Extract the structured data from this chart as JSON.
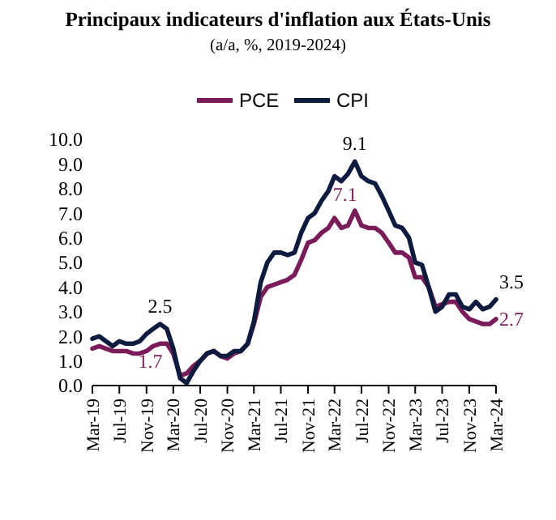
{
  "chart_data": {
    "type": "line",
    "title": "Principaux indicateurs d'inflation aux États-Unis",
    "subtitle": "(a/a, %, 2019-2024)",
    "x": [
      "2019-03",
      "2019-04",
      "2019-05",
      "2019-06",
      "2019-07",
      "2019-08",
      "2019-09",
      "2019-10",
      "2019-11",
      "2019-12",
      "2020-01",
      "2020-02",
      "2020-03",
      "2020-04",
      "2020-05",
      "2020-06",
      "2020-07",
      "2020-08",
      "2020-09",
      "2020-10",
      "2020-11",
      "2020-12",
      "2021-01",
      "2021-02",
      "2021-03",
      "2021-04",
      "2021-05",
      "2021-06",
      "2021-07",
      "2021-08",
      "2021-09",
      "2021-10",
      "2021-11",
      "2021-12",
      "2022-01",
      "2022-02",
      "2022-03",
      "2022-04",
      "2022-05",
      "2022-06",
      "2022-07",
      "2022-08",
      "2022-09",
      "2022-10",
      "2022-11",
      "2022-12",
      "2023-01",
      "2023-02",
      "2023-03",
      "2023-04",
      "2023-05",
      "2023-06",
      "2023-07",
      "2023-08",
      "2023-09",
      "2023-10",
      "2023-11",
      "2023-12",
      "2024-01",
      "2024-02",
      "2024-03"
    ],
    "series": [
      {
        "name": "PCE",
        "color": "#7b1c5a",
        "values": [
          1.5,
          1.6,
          1.5,
          1.4,
          1.4,
          1.4,
          1.3,
          1.3,
          1.4,
          1.6,
          1.7,
          1.7,
          1.3,
          0.4,
          0.5,
          0.8,
          1.0,
          1.3,
          1.4,
          1.2,
          1.1,
          1.3,
          1.4,
          1.7,
          2.5,
          3.6,
          4.0,
          4.1,
          4.2,
          4.3,
          4.5,
          5.1,
          5.8,
          5.9,
          6.2,
          6.4,
          6.8,
          6.4,
          6.5,
          7.1,
          6.5,
          6.4,
          6.4,
          6.2,
          5.8,
          5.4,
          5.4,
          5.2,
          4.4,
          4.4,
          4.0,
          3.2,
          3.3,
          3.4,
          3.4,
          3.0,
          2.7,
          2.6,
          2.5,
          2.5,
          2.7
        ]
      },
      {
        "name": "CPI",
        "color": "#0d1b3e",
        "values": [
          1.9,
          2.0,
          1.8,
          1.6,
          1.8,
          1.7,
          1.7,
          1.8,
          2.1,
          2.3,
          2.5,
          2.3,
          1.5,
          0.3,
          0.1,
          0.6,
          1.0,
          1.3,
          1.4,
          1.2,
          1.2,
          1.4,
          1.4,
          1.7,
          2.6,
          4.2,
          5.0,
          5.4,
          5.4,
          5.3,
          5.4,
          6.2,
          6.8,
          7.0,
          7.5,
          7.9,
          8.5,
          8.3,
          8.6,
          9.1,
          8.5,
          8.3,
          8.2,
          7.7,
          7.1,
          6.5,
          6.4,
          6.0,
          5.0,
          4.9,
          4.0,
          3.0,
          3.2,
          3.7,
          3.7,
          3.2,
          3.1,
          3.4,
          3.1,
          3.2,
          3.5
        ]
      }
    ],
    "xlim": [
      "2019-03",
      "2024-03"
    ],
    "xticks": [
      {
        "value": "2019-03",
        "label": "Mar-19"
      },
      {
        "value": "2019-07",
        "label": "Jul-19"
      },
      {
        "value": "2019-11",
        "label": "Nov-19"
      },
      {
        "value": "2020-03",
        "label": "Mar-20"
      },
      {
        "value": "2020-07",
        "label": "Jul-20"
      },
      {
        "value": "2020-11",
        "label": "Nov-20"
      },
      {
        "value": "2021-03",
        "label": "Mar-21"
      },
      {
        "value": "2021-07",
        "label": "Jul-21"
      },
      {
        "value": "2021-11",
        "label": "Nov-21"
      },
      {
        "value": "2022-03",
        "label": "Mar-22"
      },
      {
        "value": "2022-07",
        "label": "Jul-22"
      },
      {
        "value": "2022-11",
        "label": "Nov-22"
      },
      {
        "value": "2023-03",
        "label": "Mar-23"
      },
      {
        "value": "2023-07",
        "label": "Jul-23"
      },
      {
        "value": "2023-11",
        "label": "Nov-23"
      },
      {
        "value": "2024-03",
        "label": "Mar-24"
      }
    ],
    "ylim": [
      0,
      10
    ],
    "yticks": [
      {
        "value": 0,
        "label": "0.0"
      },
      {
        "value": 1,
        "label": "1.0"
      },
      {
        "value": 2,
        "label": "2.0"
      },
      {
        "value": 3,
        "label": "3.0"
      },
      {
        "value": 4,
        "label": "4.0"
      },
      {
        "value": 5,
        "label": "5.0"
      },
      {
        "value": 6,
        "label": "6.0"
      },
      {
        "value": 7,
        "label": "7.0"
      },
      {
        "value": 8,
        "label": "8.0"
      },
      {
        "value": 9,
        "label": "9.0"
      },
      {
        "value": 10,
        "label": "10.0"
      }
    ],
    "annotations": [
      {
        "text": "2.5",
        "x": "2020-01",
        "y": 2.5
      },
      {
        "text": "1.7",
        "x": "2020-01",
        "y": 1.7
      },
      {
        "text": "9.1",
        "x": "2022-06",
        "y": 9.1
      },
      {
        "text": "7.1",
        "x": "2022-06",
        "y": 7.1
      },
      {
        "text": "3.5",
        "x": "2024-03",
        "y": 3.5
      },
      {
        "text": "2.7",
        "x": "2024-03",
        "y": 2.7
      }
    ],
    "legend": "top",
    "grid": false,
    "marker": "none",
    "line_style": "solid"
  }
}
